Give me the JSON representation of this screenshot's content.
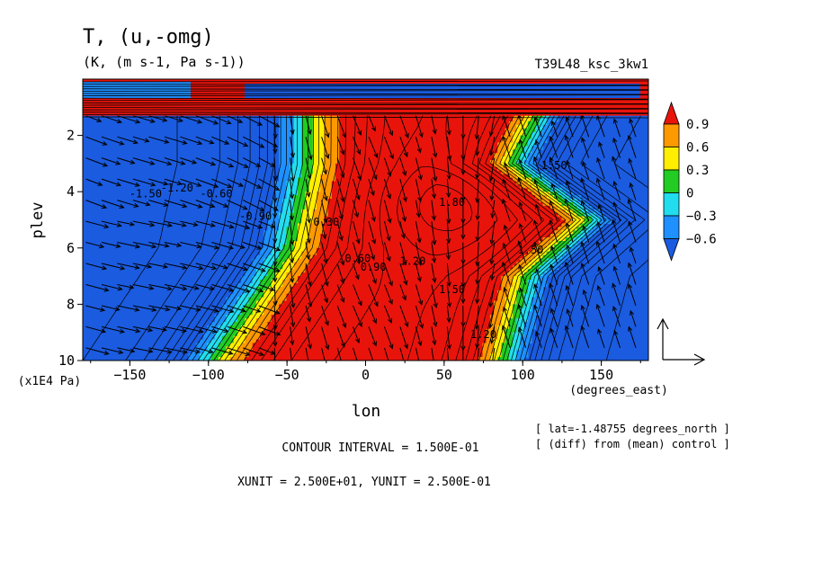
{
  "chart_data": {
    "type": "heatmap",
    "title": "T, (u,-omg)",
    "units": "(K, (m s-1, Pa s-1))",
    "run_label": "T39L48_ksc_3kw1",
    "xlabel": "lon",
    "xunits": "(degrees_east)",
    "ylabel": "plev",
    "yunits": "(x1E4 Pa)",
    "xlim": [
      -180,
      180
    ],
    "ylim": [
      10,
      0
    ],
    "x_ticks": [
      -150,
      -100,
      -50,
      0,
      50,
      100,
      150
    ],
    "x_tick_labels": [
      "−150",
      "−100",
      "−50",
      "0",
      "50",
      "100",
      "150"
    ],
    "y_ticks": [
      2,
      4,
      6,
      8,
      10
    ],
    "y_tick_labels": [
      "2",
      "4",
      "6",
      "8",
      "10"
    ],
    "colorbar": {
      "labels": [
        "0.9",
        "0.6",
        "0.3",
        "0",
        "−0.3",
        "−0.6"
      ],
      "levels": [
        0.9,
        0.6,
        0.3,
        0,
        -0.3,
        -0.6
      ],
      "colors": [
        "#e8140c",
        "#ff9900",
        "#ffee00",
        "#22cc22",
        "#22ddee",
        "#1e90ff",
        "#1a5be0"
      ],
      "extend": "both"
    },
    "contour_labels": [
      {
        "text": "1.80",
        "lon": 55,
        "plev": 4.5
      },
      {
        "text": "1.50",
        "lon": 55,
        "plev": 7.6
      },
      {
        "text": "1.20",
        "lon": 30,
        "plev": 6.6
      },
      {
        "text": "1.50",
        "lon": 105,
        "plev": 6.2
      },
      {
        "text": "1.20",
        "lon": 75,
        "plev": 9.2
      },
      {
        "text": "-1.20",
        "lon": -120,
        "plev": 4.0
      },
      {
        "text": "-1.50",
        "lon": -140,
        "plev": 4.2
      },
      {
        "text": "-0.60",
        "lon": -95,
        "plev": 4.2
      },
      {
        "text": "-0.90",
        "lon": -70,
        "plev": 5.0
      },
      {
        "text": "0.30",
        "lon": -25,
        "plev": 5.2
      },
      {
        "text": "0.60",
        "lon": -5,
        "plev": 6.5
      },
      {
        "text": "0.90",
        "lon": 5,
        "plev": 6.8
      },
      {
        "text": "1.50",
        "lon": 120,
        "plev": 3.2
      }
    ],
    "warm_core_lon": 50,
    "warm_core_plev": 4.5,
    "reference_vector": {
      "xunit": 25.0,
      "yunit": 0.25
    },
    "grid": false
  },
  "annotations": {
    "contour_interval": "CONTOUR INTERVAL = 1.500E-01",
    "units_line": "XUNIT = 2.500E+01, YUNIT = 2.500E-01",
    "lat_note": "[ lat=-1.48755 degrees_north ]",
    "diff_note": "[ (diff) from (mean) control ]"
  },
  "colors": {
    "red": "#e8140c",
    "orange": "#ff9900",
    "yellow": "#ffee00",
    "green": "#22cc22",
    "cyan": "#22ddee",
    "lightblue": "#1e90ff",
    "blue": "#1a5be0"
  }
}
